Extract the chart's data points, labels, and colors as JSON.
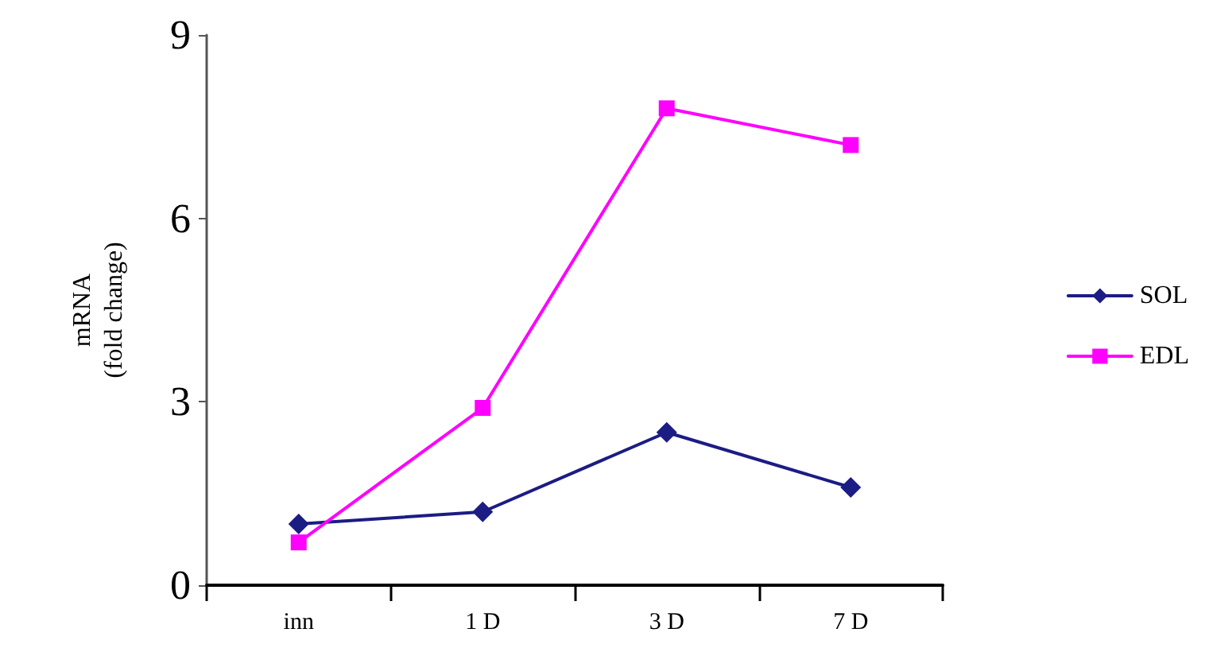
{
  "chart_data": {
    "type": "line",
    "ylabel": "mRNA\n(fold change)",
    "categories": [
      "inn",
      "1 D",
      "3 D",
      "7 D"
    ],
    "series": [
      {
        "name": "SOL",
        "color": "#1c1c85",
        "marker": "diamond",
        "values": [
          1.0,
          1.2,
          2.5,
          1.6
        ]
      },
      {
        "name": "EDL",
        "color": "#ff00ff",
        "marker": "square",
        "values": [
          0.7,
          2.9,
          7.8,
          7.2
        ]
      }
    ],
    "ylim": [
      0,
      9
    ],
    "yticks": [
      0,
      3,
      6,
      9
    ],
    "grid": false,
    "legend": "right"
  }
}
